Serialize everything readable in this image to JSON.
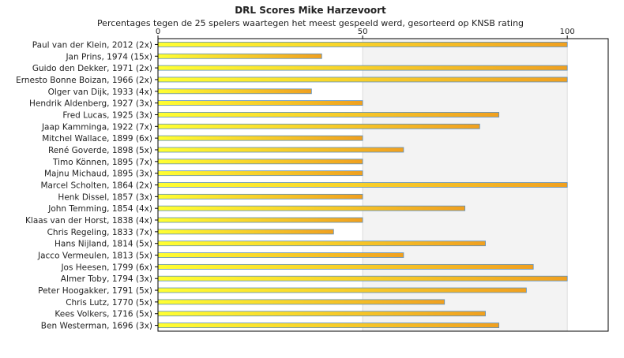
{
  "chart_data": {
    "type": "bar",
    "orientation": "horizontal",
    "title": "DRL Scores Mike Harzevoort",
    "subtitle": "Percentages tegen de 25 spelers waartegen het meest gespeeld werd, gesorteerd op KNSB rating",
    "xlabel": "",
    "ylabel": "",
    "xlim": [
      0,
      110
    ],
    "xticks": [
      0,
      50,
      100
    ],
    "grid": true,
    "legend": "none",
    "colors": {
      "bar_start": "#ffff33",
      "bar_end": "#f0a020",
      "bar_stroke": "#5a8fc0",
      "band_light": "#ffffff",
      "band_shade": "#f3f3f3",
      "gridline": "#dddddd",
      "axis": "#000000",
      "text": "#222222"
    },
    "categories": [
      "Paul van der Klein, 2012 (2x)",
      "Jan Prins, 1974 (15x)",
      "Guido den Dekker, 1971 (2x)",
      "Ernesto Bonne Boizan, 1966 (2x)",
      "Olger van Dijk, 1933 (4x)",
      "Hendrik Aldenberg, 1927 (3x)",
      "Fred Lucas, 1925 (3x)",
      "Jaap Kamminga, 1922 (7x)",
      "Mitchel Wallace, 1899 (6x)",
      "René Goverde, 1898 (5x)",
      "Timo Können, 1895 (7x)",
      "Majnu Michaud, 1895 (3x)",
      "Marcel Scholten, 1864 (2x)",
      "Henk Dissel, 1857 (3x)",
      "John Temming, 1854 (4x)",
      "Klaas van der Horst, 1838 (4x)",
      "Chris Regeling, 1833 (7x)",
      "Hans Nijland, 1814 (5x)",
      "Jacco Vermeulen, 1813 (5x)",
      "Jos Heesen, 1799 (6x)",
      "Almer Toby, 1794 (3x)",
      "Peter Hoogakker, 1791 (5x)",
      "Chris Lutz, 1770 (5x)",
      "Kees Volkers, 1716 (5x)",
      "Ben Westerman, 1696 (3x)"
    ],
    "values": [
      100,
      40,
      100,
      100,
      37.5,
      50,
      83.3,
      78.6,
      50,
      60,
      50,
      50,
      100,
      50,
      75,
      50,
      42.9,
      80,
      60,
      91.7,
      100,
      90,
      70,
      80,
      83.3
    ]
  }
}
